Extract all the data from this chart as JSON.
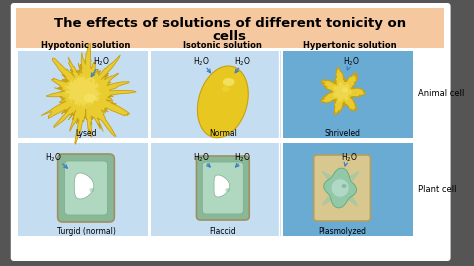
{
  "title_line1": "The effects of solutions of different tonicity on",
  "title_line2": "cells",
  "title_fontsize": 9.5,
  "title_bg": "#f5c8a0",
  "bg_color": "#ffffff",
  "outer_bg": "#555555",
  "col_headers": [
    "Hypotonic solution",
    "Isotonic solution",
    "Hypertonic solution"
  ],
  "col_header_fontsize": 6,
  "row_labels": [
    "Animal cell",
    "Plant cell"
  ],
  "animal_labels": [
    "Lysed",
    "Normal",
    "Shriveled"
  ],
  "plant_labels": [
    "Turgid (normal)",
    "Flaccid",
    "Plasmolyzed"
  ],
  "panel_bg_col0": "#c5ddf0",
  "panel_bg_col1": "#c5ddf0",
  "panel_bg_col2": "#6aabd4",
  "cell_yellow_dark": "#e8c820",
  "cell_yellow_light": "#f5e060",
  "cell_green_outer": "#98c8a8",
  "cell_green_inner": "#b8dcc8",
  "cell_plasm_outer": "#d8c898",
  "cell_plasm_inner": "#a8d0b8",
  "arrow_color": "#4080c0",
  "label_fontsize": 5.5,
  "h2o_fontsize": 5.5,
  "side_label_fontsize": 6
}
